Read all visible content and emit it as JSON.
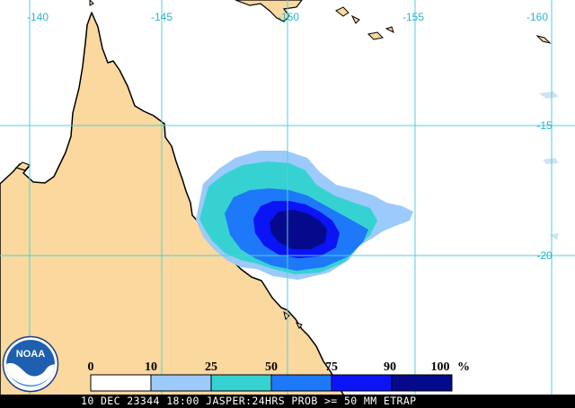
{
  "map": {
    "longitude_labels": [
      "-140",
      "-145",
      "-150",
      "-155",
      "-160"
    ],
    "latitude_labels": [
      "-15",
      "-20"
    ],
    "colors": {
      "ocean": "#ffffff",
      "land": "#fad89e",
      "coastline": "#000000",
      "gridline": "#4fd0dc"
    }
  },
  "legend": {
    "values": [
      "0",
      "10",
      "25",
      "50",
      "75",
      "90",
      "100"
    ],
    "unit": "%",
    "colors": [
      "#ffffff",
      "#9ccafa",
      "#36d2d2",
      "#1e78fa",
      "#0a14f5",
      "#050a8c"
    ]
  },
  "probability_field": {
    "levels_percent": [
      10,
      25,
      50,
      75,
      90
    ]
  },
  "logo": {
    "text": "NOAA",
    "icon": "noaa-logo-icon"
  },
  "footer": {
    "caption": "10 DEC 23344 18:00 JASPER:24HRS PROB >= 50 MM ETRAP"
  }
}
